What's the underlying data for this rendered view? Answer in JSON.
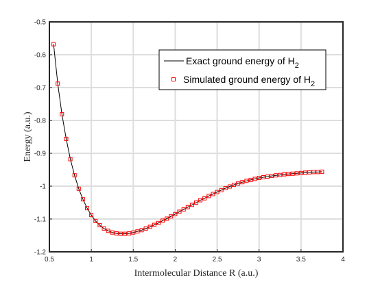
{
  "chart_data": {
    "type": "line",
    "xlabel": "Intermolecular Distance R (a.u.)",
    "ylabel": "Energy (a.u.)",
    "xlim": [
      0.5,
      4
    ],
    "ylim": [
      -1.2,
      -0.5
    ],
    "xticks": [
      "0.5",
      "1",
      "1.5",
      "2",
      "2.5",
      "3",
      "3.5",
      "4"
    ],
    "yticks": [
      "-1.2",
      "-1.1",
      "-1",
      "-0.9",
      "-0.8",
      "-0.7",
      "-0.6",
      "-0.5"
    ],
    "grid": true,
    "legend_position": "top-right",
    "series": [
      {
        "name": "Exact ground energy of H2",
        "legend_main": "Exact ground energy of H",
        "legend_sub": "2",
        "style": "line",
        "color": "#000000",
        "x": [
          0.55,
          0.6,
          0.65,
          0.7,
          0.75,
          0.8,
          0.85,
          0.9,
          0.95,
          1.0,
          1.05,
          1.1,
          1.15,
          1.2,
          1.25,
          1.3,
          1.35,
          1.4,
          1.45,
          1.5,
          1.55,
          1.6,
          1.65,
          1.7,
          1.75,
          1.8,
          1.85,
          1.9,
          1.95,
          2.0,
          2.05,
          2.1,
          2.15,
          2.2,
          2.25,
          2.3,
          2.35,
          2.4,
          2.45,
          2.5,
          2.55,
          2.6,
          2.65,
          2.7,
          2.75,
          2.8,
          2.85,
          2.9,
          2.95,
          3.0,
          3.05,
          3.1,
          3.15,
          3.2,
          3.25,
          3.3,
          3.35,
          3.4,
          3.45,
          3.5,
          3.55,
          3.6,
          3.65,
          3.7,
          3.75
        ],
        "y": [
          -0.568,
          -0.688,
          -0.781,
          -0.856,
          -0.918,
          -0.967,
          -1.008,
          -1.04,
          -1.067,
          -1.088,
          -1.106,
          -1.119,
          -1.129,
          -1.136,
          -1.141,
          -1.144,
          -1.145,
          -1.145,
          -1.144,
          -1.141,
          -1.138,
          -1.134,
          -1.129,
          -1.124,
          -1.118,
          -1.112,
          -1.105,
          -1.099,
          -1.092,
          -1.085,
          -1.078,
          -1.071,
          -1.064,
          -1.057,
          -1.05,
          -1.043,
          -1.037,
          -1.03,
          -1.024,
          -1.018,
          -1.012,
          -1.006,
          -1.001,
          -0.996,
          -0.992,
          -0.988,
          -0.984,
          -0.981,
          -0.978,
          -0.975,
          -0.973,
          -0.971,
          -0.969,
          -0.967,
          -0.966,
          -0.964,
          -0.963,
          -0.962,
          -0.961,
          -0.96,
          -0.959,
          -0.958,
          -0.957,
          -0.957,
          -0.956
        ]
      },
      {
        "name": "Simulated ground energy of H2",
        "legend_main": "Simulated ground energy of H",
        "legend_sub": "2",
        "style": "markers",
        "marker": "square",
        "color": "#ff0000",
        "x": [
          0.55,
          0.6,
          0.65,
          0.7,
          0.75,
          0.8,
          0.85,
          0.9,
          0.95,
          1.0,
          1.05,
          1.1,
          1.15,
          1.2,
          1.25,
          1.3,
          1.35,
          1.4,
          1.45,
          1.5,
          1.55,
          1.6,
          1.65,
          1.7,
          1.75,
          1.8,
          1.85,
          1.9,
          1.95,
          2.0,
          2.05,
          2.1,
          2.15,
          2.2,
          2.25,
          2.3,
          2.35,
          2.4,
          2.45,
          2.5,
          2.55,
          2.6,
          2.65,
          2.7,
          2.75,
          2.8,
          2.85,
          2.9,
          2.95,
          3.0,
          3.05,
          3.1,
          3.15,
          3.2,
          3.25,
          3.3,
          3.35,
          3.4,
          3.45,
          3.5,
          3.55,
          3.6,
          3.65,
          3.7,
          3.75
        ],
        "y": [
          -0.568,
          -0.688,
          -0.781,
          -0.856,
          -0.918,
          -0.967,
          -1.008,
          -1.04,
          -1.067,
          -1.088,
          -1.106,
          -1.119,
          -1.129,
          -1.136,
          -1.141,
          -1.144,
          -1.145,
          -1.145,
          -1.144,
          -1.141,
          -1.138,
          -1.134,
          -1.129,
          -1.124,
          -1.118,
          -1.112,
          -1.105,
          -1.099,
          -1.092,
          -1.085,
          -1.078,
          -1.071,
          -1.064,
          -1.057,
          -1.05,
          -1.043,
          -1.037,
          -1.03,
          -1.024,
          -1.018,
          -1.012,
          -1.006,
          -1.001,
          -0.996,
          -0.992,
          -0.988,
          -0.984,
          -0.981,
          -0.978,
          -0.975,
          -0.973,
          -0.971,
          -0.969,
          -0.967,
          -0.966,
          -0.964,
          -0.963,
          -0.962,
          -0.961,
          -0.96,
          -0.959,
          -0.958,
          -0.957,
          -0.957,
          -0.956
        ]
      }
    ]
  }
}
